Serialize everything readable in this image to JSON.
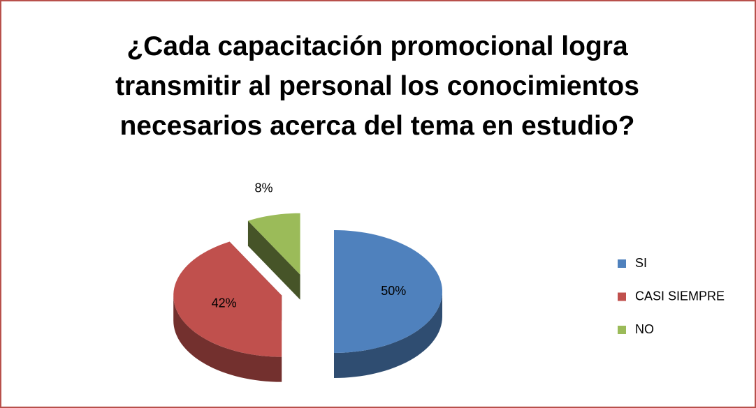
{
  "chart_data": {
    "type": "pie",
    "title": "¿Cada capacitación promocional logra transmitir al personal los conocimientos necesarios acerca del tema en estudio?",
    "categories": [
      "SI",
      "CASI SIEMPRE",
      "NO"
    ],
    "values": [
      50,
      42,
      8
    ],
    "value_labels": [
      "50%",
      "42%",
      "8%"
    ],
    "colors": [
      "#4f81bd",
      "#c0504d",
      "#9bbb59"
    ],
    "legend": "right"
  }
}
